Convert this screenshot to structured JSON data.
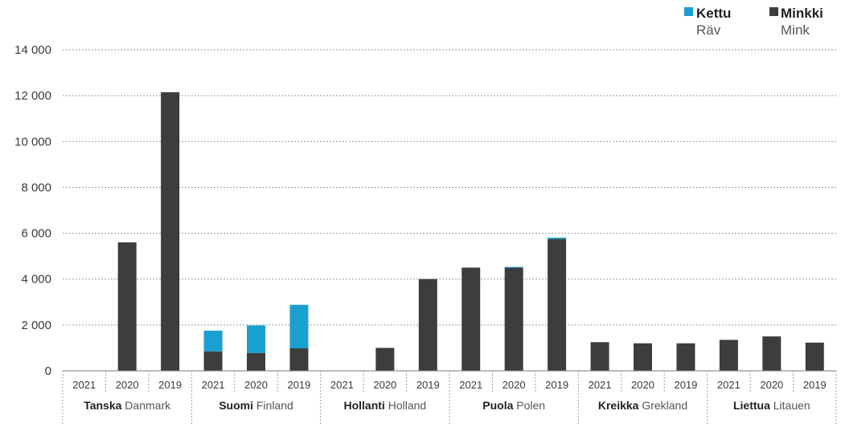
{
  "chart_data": {
    "type": "bar",
    "stacked": true,
    "title": "",
    "xlabel": "",
    "ylabel": "",
    "ylim": [
      0,
      14000
    ],
    "yticks": [
      0,
      2000,
      4000,
      6000,
      8000,
      10000,
      12000,
      14000
    ],
    "ytick_labels": [
      "0",
      "2 000",
      "4 000",
      "6 000",
      "8 000",
      "10 000",
      "12 000",
      "14 000"
    ],
    "grid": true,
    "legend_position": "top-right",
    "years": [
      "2021",
      "2020",
      "2019"
    ],
    "groups": [
      {
        "name_fi": "Tanska",
        "name_sv": "Danmark"
      },
      {
        "name_fi": "Suomi",
        "name_sv": "Finland"
      },
      {
        "name_fi": "Hollanti",
        "name_sv": "Holland"
      },
      {
        "name_fi": "Puola",
        "name_sv": "Polen"
      },
      {
        "name_fi": "Kreikka",
        "name_sv": "Grekland"
      },
      {
        "name_fi": "Liettua",
        "name_sv": "Litauen"
      }
    ],
    "series": [
      {
        "key": "mink",
        "name_fi": "Minkki",
        "name_sv": "Mink",
        "color": "#3d3d3d",
        "values": [
          [
            0,
            5600,
            12150
          ],
          [
            850,
            780,
            980
          ],
          [
            0,
            1000,
            4000
          ],
          [
            4500,
            4500,
            5750
          ],
          [
            1250,
            1200,
            1200
          ],
          [
            1350,
            1500,
            1230
          ]
        ]
      },
      {
        "key": "fox",
        "name_fi": "Kettu",
        "name_sv": "Räv",
        "color": "#1aa0d0",
        "values": [
          [
            0,
            0,
            0
          ],
          [
            900,
            1200,
            1900
          ],
          [
            0,
            0,
            0
          ],
          [
            0,
            30,
            60
          ],
          [
            0,
            0,
            0
          ],
          [
            0,
            0,
            0
          ]
        ]
      }
    ]
  }
}
